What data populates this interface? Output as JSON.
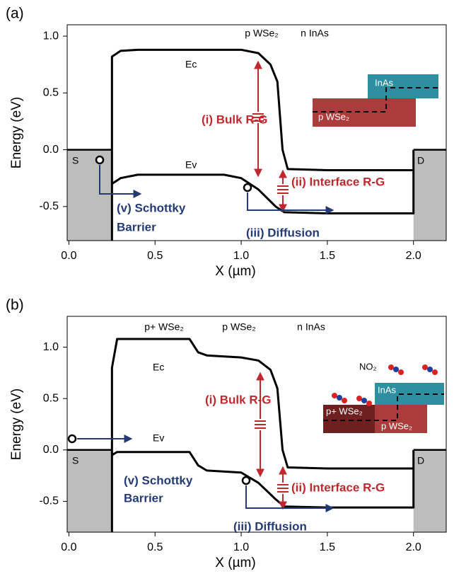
{
  "chart_data": [
    {
      "type": "line",
      "panel_label": "(a)",
      "xlabel": "X (µm)",
      "ylabel": "Energy (eV)",
      "xlim": [
        -0.01,
        2.19
      ],
      "ylim": [
        -0.8,
        1.1
      ],
      "xticks": [
        {
          "value": 0,
          "label": "0.0"
        },
        0.5,
        {
          "value": 1,
          "label": "1.0"
        },
        1.5,
        {
          "value": 2,
          "label": "2.0"
        }
      ],
      "yticks": [
        {
          "value": 1,
          "label": "1.0"
        },
        0.5,
        {
          "value": 0,
          "label": "0.0"
        },
        -0.5
      ],
      "series": [
        {
          "name": "Ec",
          "color": "#000000",
          "x": [
            0.25,
            0.25,
            0.3,
            0.4,
            1.0,
            1.1,
            1.17,
            1.21,
            1.24,
            1.27,
            1.5,
            2.0
          ],
          "values": [
            -0.8,
            0.82,
            0.87,
            0.88,
            0.88,
            0.85,
            0.75,
            0.6,
            0.0,
            -0.17,
            -0.18,
            -0.18
          ]
        },
        {
          "name": "Ev",
          "color": "#000000",
          "x": [
            0.25,
            0.3,
            0.4,
            0.9,
            1.0,
            1.1,
            1.2,
            1.25,
            1.5,
            2.0,
            2.0
          ],
          "values": [
            -0.3,
            -0.25,
            -0.22,
            -0.22,
            -0.25,
            -0.35,
            -0.5,
            -0.55,
            -0.56,
            -0.56,
            0
          ]
        }
      ],
      "annotations": {
        "regions": [
          "p WSe₂",
          "n InAs"
        ],
        "contacts": [
          "S",
          "D"
        ],
        "processes": [
          "(i) Bulk R-G",
          "(ii) Interface R-G",
          "(iii) Diffusion"
        ],
        "schottky": [
          "(v) Schottky",
          "Barrier"
        ],
        "inset_labels": [
          "InAs",
          "p WSe₂"
        ]
      }
    },
    {
      "type": "line",
      "panel_label": "(b)",
      "xlabel": "X (µm)",
      "ylabel": "Energy (eV)",
      "xlim": [
        -0.01,
        2.19
      ],
      "ylim": [
        -0.8,
        1.3
      ],
      "xticks": [
        {
          "value": 0,
          "label": "0.0"
        },
        0.5,
        {
          "value": 1,
          "label": "1.0"
        },
        1.5,
        {
          "value": 2,
          "label": "2.0"
        }
      ],
      "yticks": [
        {
          "value": 1,
          "label": "1.0"
        },
        0.5,
        {
          "value": 0,
          "label": "0.0"
        },
        -0.5
      ],
      "series": [
        {
          "name": "Ec",
          "color": "#000000",
          "x": [
            0.25,
            0.25,
            0.28,
            0.7,
            0.75,
            0.8,
            1.0,
            1.1,
            1.17,
            1.21,
            1.24,
            1.27,
            1.5,
            2.0
          ],
          "values": [
            -0.8,
            0.8,
            1.08,
            1.08,
            0.95,
            0.92,
            0.9,
            0.87,
            0.78,
            0.6,
            0.0,
            -0.17,
            -0.18,
            -0.18
          ]
        },
        {
          "name": "Ev",
          "color": "#000000",
          "x": [
            0.25,
            0.28,
            0.7,
            0.75,
            0.8,
            1.0,
            1.1,
            1.2,
            1.25,
            1.5,
            2.0,
            2.0
          ],
          "values": [
            -0.05,
            -0.02,
            -0.02,
            -0.15,
            -0.2,
            -0.22,
            -0.32,
            -0.48,
            -0.55,
            -0.56,
            -0.56,
            0
          ]
        }
      ],
      "annotations": {
        "regions": [
          "p+ WSe₂",
          "p WSe₂",
          "n InAs"
        ],
        "contacts": [
          "S",
          "D"
        ],
        "processes": [
          "(i) Bulk R-G",
          "(ii) Interface R-G",
          "(iii) Diffusion"
        ],
        "schottky": [
          "(v) Schottky",
          "Barrier"
        ],
        "gas": "NO₂",
        "inset_labels": [
          "InAs",
          "p+ WSe₂",
          "p WSe₂"
        ]
      }
    }
  ]
}
